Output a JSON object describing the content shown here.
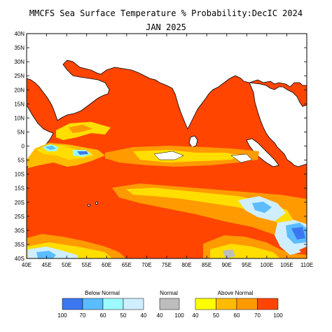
{
  "title": {
    "line1": "MMCFS Sea Surface Temperature % Probability:DecIC 2024",
    "line2": "JAN 2025"
  },
  "map": {
    "lon_range": [
      40,
      110
    ],
    "lat_range": [
      -40,
      40
    ],
    "lon_ticks": [
      "40E",
      "45E",
      "50E",
      "55E",
      "60E",
      "65E",
      "70E",
      "75E",
      "80E",
      "85E",
      "90E",
      "95E",
      "100E",
      "105E",
      "110E"
    ],
    "lat_ticks": [
      "40N",
      "35N",
      "30N",
      "25N",
      "20N",
      "15N",
      "10N",
      "5N",
      "0",
      "5S",
      "10S",
      "15S",
      "20S",
      "25S",
      "30S",
      "35S",
      "40S"
    ],
    "colors": {
      "land": "#ffffff",
      "ocean_above_100": "#ff4500",
      "above_70": "#ff9a00",
      "above_60": "#ffbb00",
      "above_50": "#ffde00",
      "above_40": "#ffff00",
      "normal": "#bdbdbd",
      "below_40": "#cfeeff",
      "below_50": "#9cfbff",
      "below_60": "#5bbcff",
      "below_70": "#3b78f0"
    }
  },
  "legend": {
    "below": {
      "title": "Below Normal",
      "labels": [
        "100",
        "70",
        "60",
        "50",
        "40"
      ],
      "colors": [
        "#3b78f0",
        "#5bbcff",
        "#9cfbff",
        "#cfeeff"
      ]
    },
    "normal": {
      "title": "Normal",
      "labels": [
        "40",
        "100"
      ],
      "colors": [
        "#bdbdbd"
      ]
    },
    "above": {
      "title": "Above Normal",
      "labels": [
        "40",
        "50",
        "60",
        "70",
        "100"
      ],
      "colors": [
        "#ffff00",
        "#ffbb00",
        "#ff9a00",
        "#ff4500"
      ]
    }
  }
}
